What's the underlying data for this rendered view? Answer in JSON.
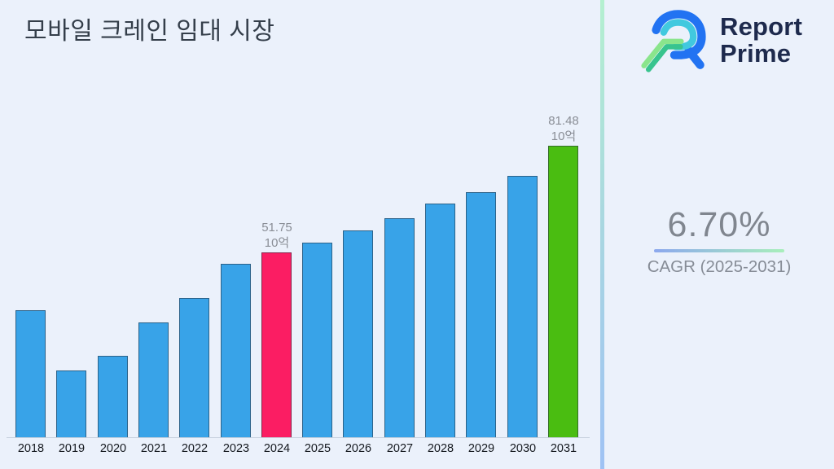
{
  "title": "모바일 크레인 임대 시장",
  "canvas_bg": "#EBF1FB",
  "separator_colors": {
    "top": "#B4F0D0",
    "bottom": "#9FC2F4"
  },
  "brand": {
    "line1": "Report",
    "line2": "Prime",
    "text_color": "#1E2A4D",
    "logo_colors": {
      "blue": "#2273F2",
      "cyan": "#41C9DF",
      "green_light": "#8AE58C",
      "green_teal": "#38C48E"
    }
  },
  "cagr": {
    "value": "6.70%",
    "label": "CAGR (2025-2031)",
    "underline_from": "#8CA8EE",
    "underline_to": "#A8EFBB"
  },
  "chart_data": {
    "type": "bar",
    "title": "모바일 크레인 임대 시장",
    "categories": [
      "2018",
      "2019",
      "2020",
      "2021",
      "2022",
      "2023",
      "2024",
      "2025",
      "2026",
      "2027",
      "2028",
      "2029",
      "2030",
      "2031"
    ],
    "values": [
      35.6,
      18.6,
      22.7,
      32.2,
      39.0,
      48.6,
      51.75,
      54.4,
      57.8,
      61.3,
      65.4,
      68.7,
      73.2,
      81.48
    ],
    "unit_label": "10억",
    "ylim": [
      0,
      90
    ],
    "grid": false,
    "legend": "none",
    "bar_color_default": "#38A3E8",
    "highlights": [
      {
        "year": "2024",
        "color": "#FB1D63",
        "label_value": "51.75",
        "label_unit": "10억"
      },
      {
        "year": "2031",
        "color": "#4ABD11",
        "label_value": "81.48",
        "label_unit": "10억"
      }
    ]
  }
}
